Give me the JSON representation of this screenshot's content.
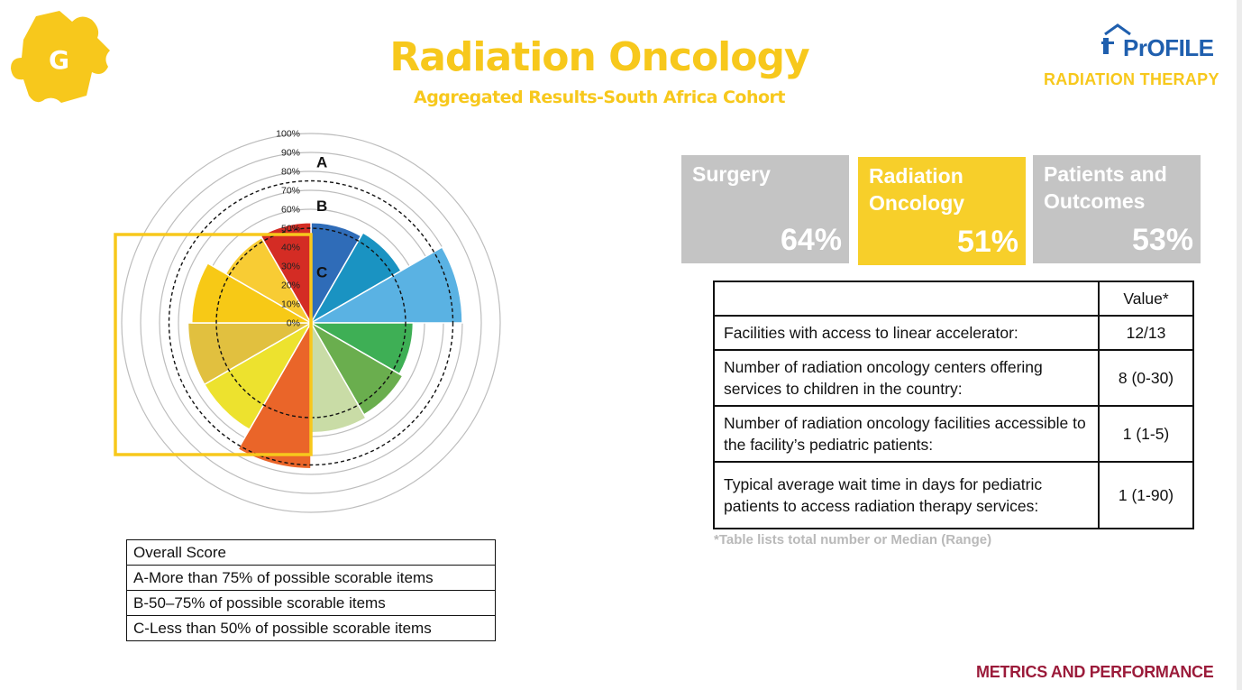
{
  "header": {
    "title": "Radiation Oncology",
    "subtitle": "Aggregated Results-South Africa Cohort"
  },
  "brand": {
    "name": "PrOFILE",
    "tagline": "RADIATION THERAPY"
  },
  "colors": {
    "accent_yellow": "#f7c81c",
    "card_gray": "#c4c4c4",
    "brand_blue": "#1f5fae",
    "footer_red": "#9b1b3a"
  },
  "chart_data": {
    "type": "polar-area",
    "radial_ticks": [
      "0%",
      "10%",
      "20%",
      "30%",
      "40%",
      "50%",
      "60%",
      "70%",
      "80%",
      "90%",
      "100%"
    ],
    "rmax": 100,
    "zone_labels": [
      {
        "label": "A",
        "at_percent": 85
      },
      {
        "label": "B",
        "at_percent": 62
      },
      {
        "label": "C",
        "at_percent": 27
      }
    ],
    "threshold_lines_percent": [
      50,
      75
    ],
    "segments": [
      {
        "value": 53,
        "color": "#2f6cb8"
      },
      {
        "value": 55,
        "color": "#1a93c2"
      },
      {
        "value": 80,
        "color": "#5ab2e3"
      },
      {
        "value": 54,
        "color": "#3eaf55"
      },
      {
        "value": 56,
        "color": "#6aae4e"
      },
      {
        "value": 58,
        "color": "#c9dca6"
      },
      {
        "value": 77,
        "color": "#ea6529"
      },
      {
        "value": 65,
        "color": "#ede22e"
      },
      {
        "value": 65,
        "color": "#e1c03f"
      },
      {
        "value": 63,
        "color": "#f7c916"
      },
      {
        "value": 52,
        "color": "#f8cc34"
      },
      {
        "value": 53,
        "color": "#d42c24"
      }
    ]
  },
  "legend": {
    "rows": [
      "Overall Score",
      "A-More than 75% of possible scorable items",
      "B-50–75% of possible scorable items",
      "C-Less than 50% of possible scorable items"
    ]
  },
  "cards": [
    {
      "label": "Surgery",
      "value": "64%",
      "style": "gray"
    },
    {
      "label": "Radiation Oncology",
      "value": "51%",
      "style": "yellow"
    },
    {
      "label": "Patients and Outcomes",
      "value": "53%",
      "style": "gray"
    }
  ],
  "metrics_table": {
    "header": [
      "",
      "Value*"
    ],
    "rows": [
      {
        "label": "Facilities with access to linear accelerator:",
        "value": "12/13"
      },
      {
        "label": "Number of radiation oncology centers offering services to children in the country:",
        "value": "8 (0-30)"
      },
      {
        "label": "Number of radiation oncology facilities accessible to the facility’s pediatric patients:",
        "value": "1 (1-5)"
      },
      {
        "label": "Typical average wait time in days for pediatric patients to access radiation therapy services:",
        "value": "1 (1-90)"
      }
    ]
  },
  "note": "*Table lists total number or Median (Range)",
  "footer": "METRICS AND PERFORMANCE"
}
